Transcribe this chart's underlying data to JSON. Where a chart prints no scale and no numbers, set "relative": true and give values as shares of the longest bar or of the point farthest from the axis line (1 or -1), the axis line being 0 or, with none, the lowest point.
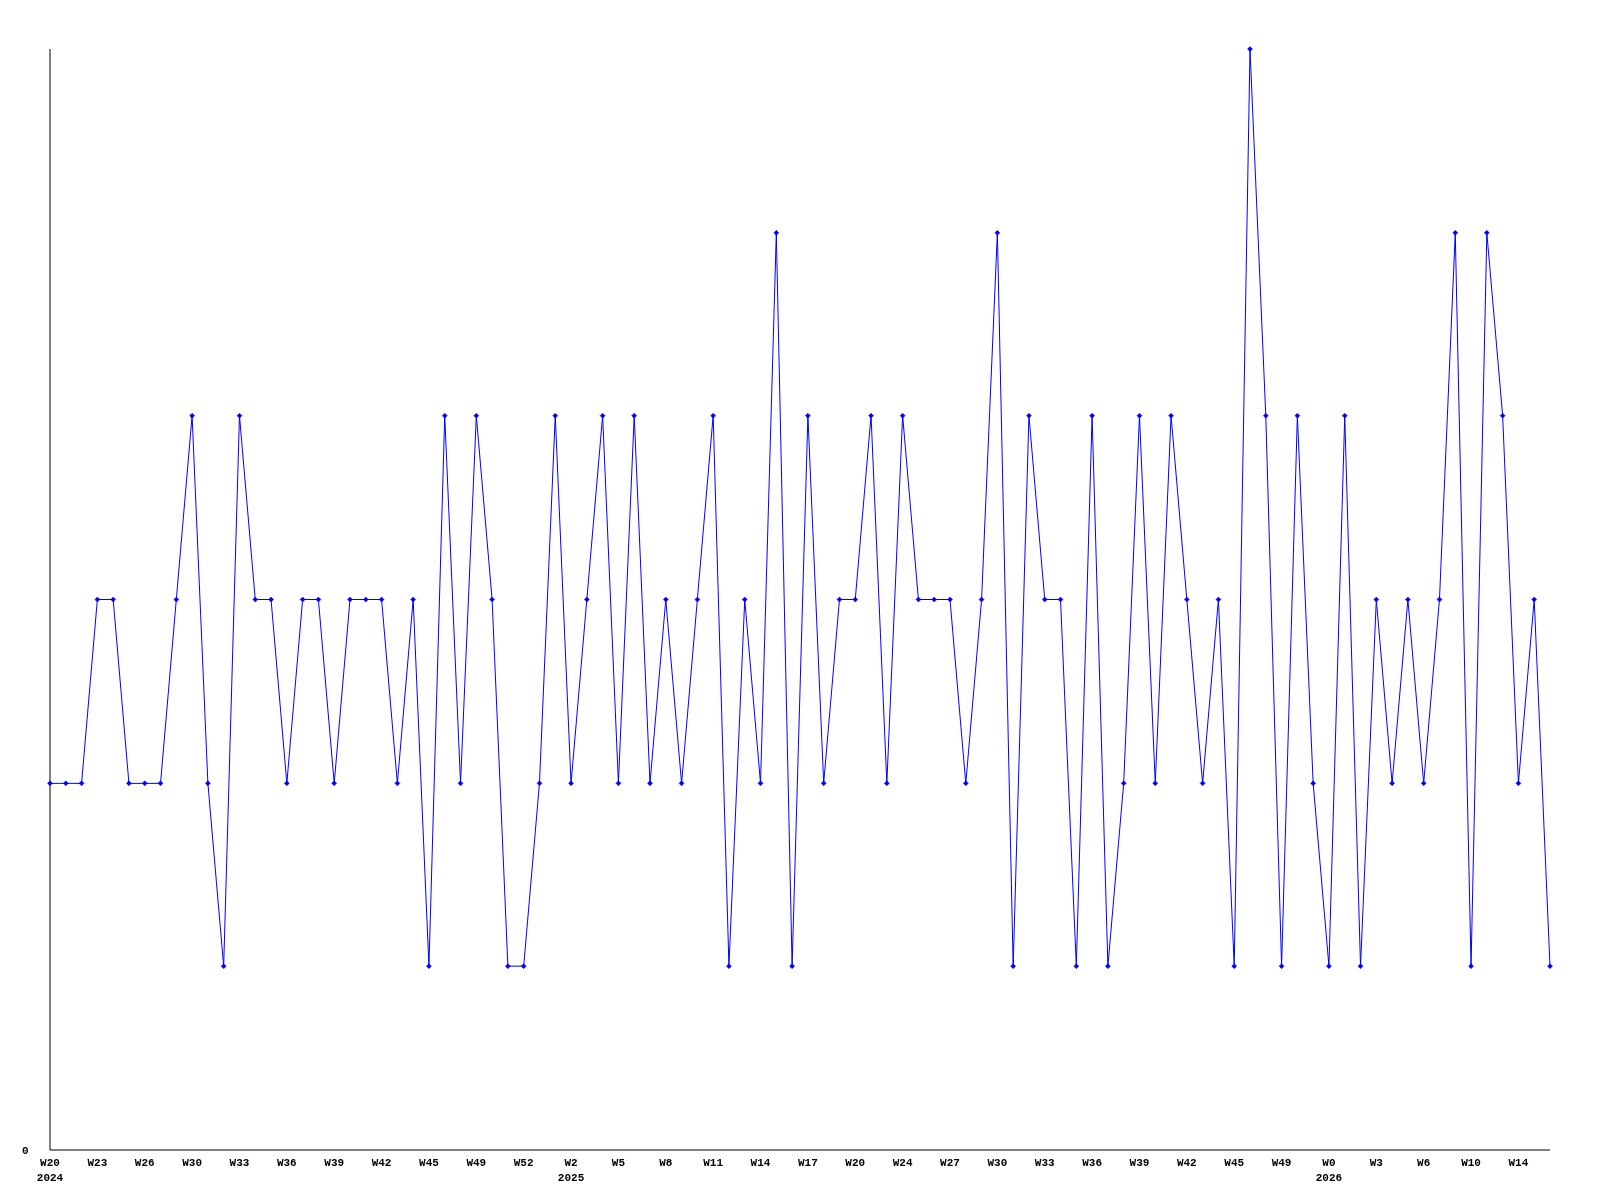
{
  "chart_data": {
    "type": "line",
    "relative": true,
    "color": "#0000ff",
    "marker": "diamond",
    "line_style": "solid",
    "annotations": [
      "0"
    ],
    "categories": [
      "W20\n2024",
      null,
      null,
      "W23",
      null,
      null,
      "W26",
      null,
      null,
      "W30",
      null,
      null,
      "W33",
      null,
      null,
      "W36",
      null,
      null,
      "W39",
      null,
      null,
      "W42",
      null,
      null,
      "W45",
      null,
      null,
      "W49",
      null,
      null,
      "W52",
      null,
      null,
      "W2\n2025",
      null,
      null,
      "W5",
      null,
      null,
      "W8",
      null,
      null,
      "W11",
      null,
      null,
      "W14",
      null,
      null,
      "W17",
      null,
      null,
      "W20",
      null,
      null,
      "W24",
      null,
      null,
      "W27",
      null,
      null,
      "W30",
      null,
      null,
      "W33",
      null,
      null,
      "W36",
      null,
      null,
      "W39",
      null,
      null,
      "W42",
      null,
      null,
      "W45",
      null,
      null,
      "W49",
      null,
      null,
      "W0\n2026",
      null,
      null,
      "W3",
      null,
      null,
      "W6",
      null,
      null,
      "W10",
      null,
      null,
      "W14",
      null,
      null
    ],
    "values": [
      0.333,
      0.333,
      0.333,
      0.5,
      0.5,
      0.333,
      0.333,
      0.333,
      0.5,
      0.667,
      0.333,
      0.167,
      0.667,
      0.5,
      0.5,
      0.333,
      0.5,
      0.5,
      0.333,
      0.5,
      0.5,
      0.5,
      0.333,
      0.5,
      0.167,
      0.667,
      0.333,
      0.667,
      0.5,
      0.167,
      0.167,
      0.333,
      0.667,
      0.333,
      0.5,
      0.667,
      0.333,
      0.667,
      0.333,
      0.5,
      0.333,
      0.5,
      0.667,
      0.167,
      0.5,
      0.333,
      0.833,
      0.167,
      0.667,
      0.333,
      0.5,
      0.5,
      0.667,
      0.333,
      0.667,
      0.5,
      0.5,
      0.5,
      0.333,
      0.5,
      0.833,
      0.167,
      0.667,
      0.5,
      0.5,
      0.167,
      0.667,
      0.167,
      0.333,
      0.667,
      0.333,
      0.667,
      0.5,
      0.333,
      0.5,
      0.167,
      1,
      0.667,
      0.167,
      0.667,
      0.333,
      0.167,
      0.667,
      0.167,
      0.5,
      0.333,
      0.5,
      0.333,
      0.5,
      0.833,
      0.167,
      0.833,
      0.667,
      0.333,
      0.5,
      0.167
    ]
  }
}
